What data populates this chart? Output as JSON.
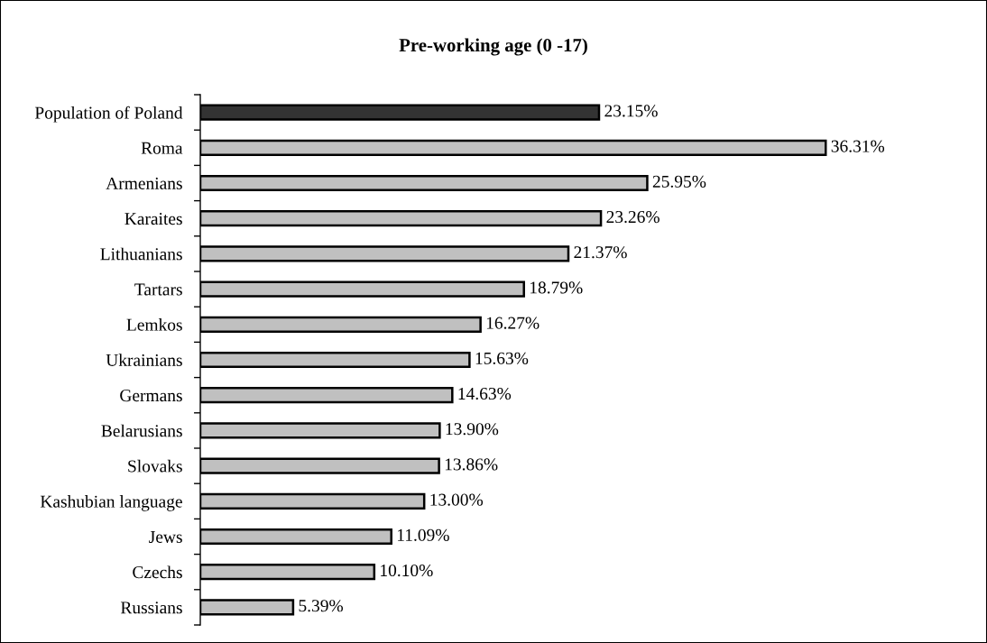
{
  "chart_data": {
    "type": "bar",
    "orientation": "horizontal",
    "title": "Pre-working age (0 -17)",
    "categories": [
      "Population of Poland",
      "Roma",
      "Armenians",
      "Karaites",
      "Lithuanians",
      "Tartars",
      "Lemkos",
      "Ukrainians",
      "Germans",
      "Belarusians",
      "Slovaks",
      "Kashubian language",
      "Jews",
      "Czechs",
      "Russians"
    ],
    "values": [
      23.15,
      36.31,
      25.95,
      23.26,
      21.37,
      18.79,
      16.27,
      15.63,
      14.63,
      13.9,
      13.86,
      13.0,
      11.09,
      10.1,
      5.39
    ],
    "colors": [
      "#333333",
      "#c0c0c0",
      "#c0c0c0",
      "#c0c0c0",
      "#c0c0c0",
      "#c0c0c0",
      "#c0c0c0",
      "#c0c0c0",
      "#c0c0c0",
      "#c0c0c0",
      "#c0c0c0",
      "#c0c0c0",
      "#c0c0c0",
      "#c0c0c0",
      "#c0c0c0"
    ],
    "value_labels": [
      "23.15%",
      "36.31%",
      "25.95%",
      "23.26%",
      "21.37%",
      "18.79%",
      "16.27%",
      "15.63%",
      "14.63%",
      "13.90%",
      "13.86%",
      "13.00%",
      "11.09%",
      "10.10%",
      "5.39%"
    ]
  }
}
